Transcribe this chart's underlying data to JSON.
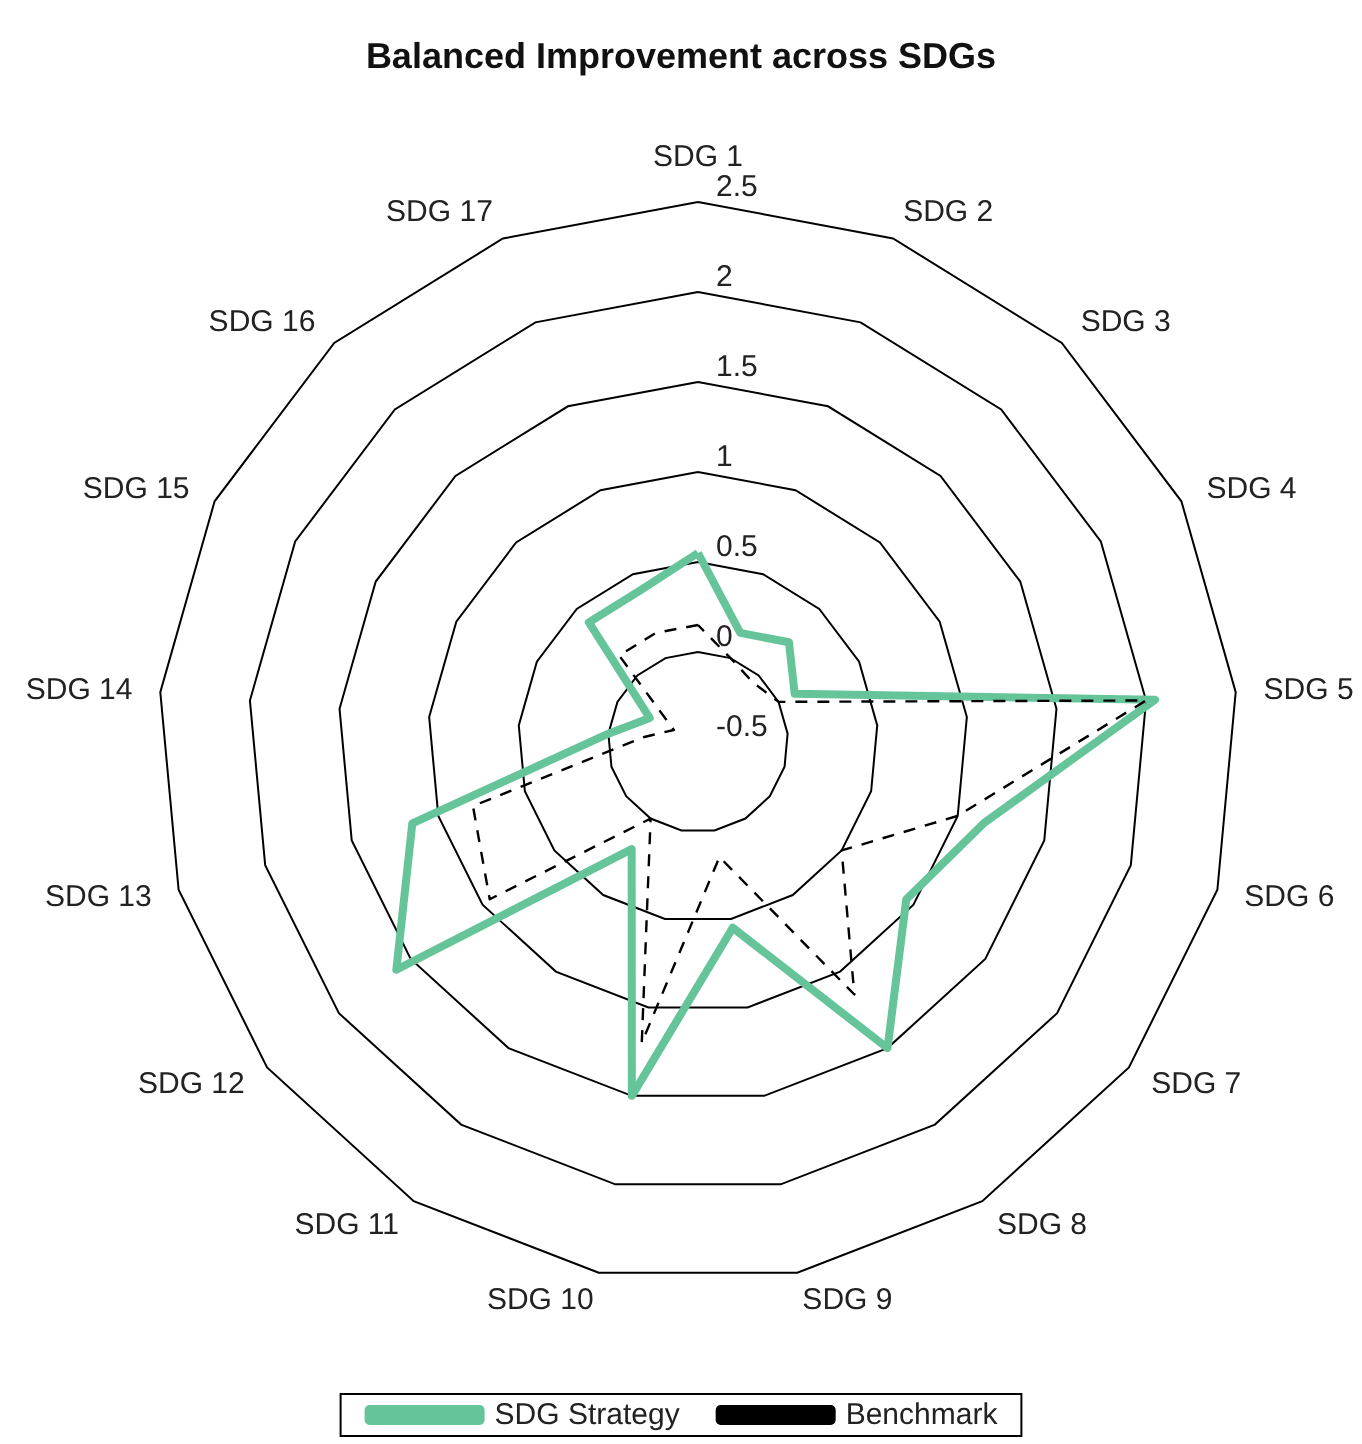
{
  "chart_data": {
    "type": "radar",
    "title": "Balanced Improvement across SDGs",
    "categories": [
      "SDG 1",
      "SDG 2",
      "SDG 3",
      "SDG 4",
      "SDG 5",
      "SDG 6",
      "SDG 7",
      "SDG 8",
      "SDG 9",
      "SDG 10",
      "SDG 11",
      "SDG 12",
      "SDG 13",
      "SDG 14",
      "SDG 15",
      "SDG 16",
      "SDG 17"
    ],
    "series": [
      {
        "name": "SDG Strategy",
        "color": "#66c49a",
        "line_style": "solid",
        "values": [
          0.55,
          0.15,
          0.25,
          0.1,
          2.05,
          1.15,
          0.95,
          1.5,
          0.55,
          1.5,
          0.2,
          1.6,
          1.15,
          0.0,
          -0.2,
          0.4,
          0.4
        ]
      },
      {
        "name": "Benchmark",
        "color": "#000000",
        "line_style": "dashed",
        "values": [
          0.15,
          0.0,
          -0.05,
          0.0,
          2.0,
          1.0,
          0.5,
          1.15,
          0.15,
          1.2,
          0.0,
          0.95,
          0.8,
          -0.2,
          -0.35,
          0.15,
          0.15
        ]
      }
    ],
    "ylim": [
      -0.5,
      2.5
    ],
    "yticks": [
      -0.5,
      0,
      0.5,
      1,
      1.5,
      2,
      2.5
    ],
    "legend": "bottom",
    "grid": true,
    "marker": "none"
  }
}
